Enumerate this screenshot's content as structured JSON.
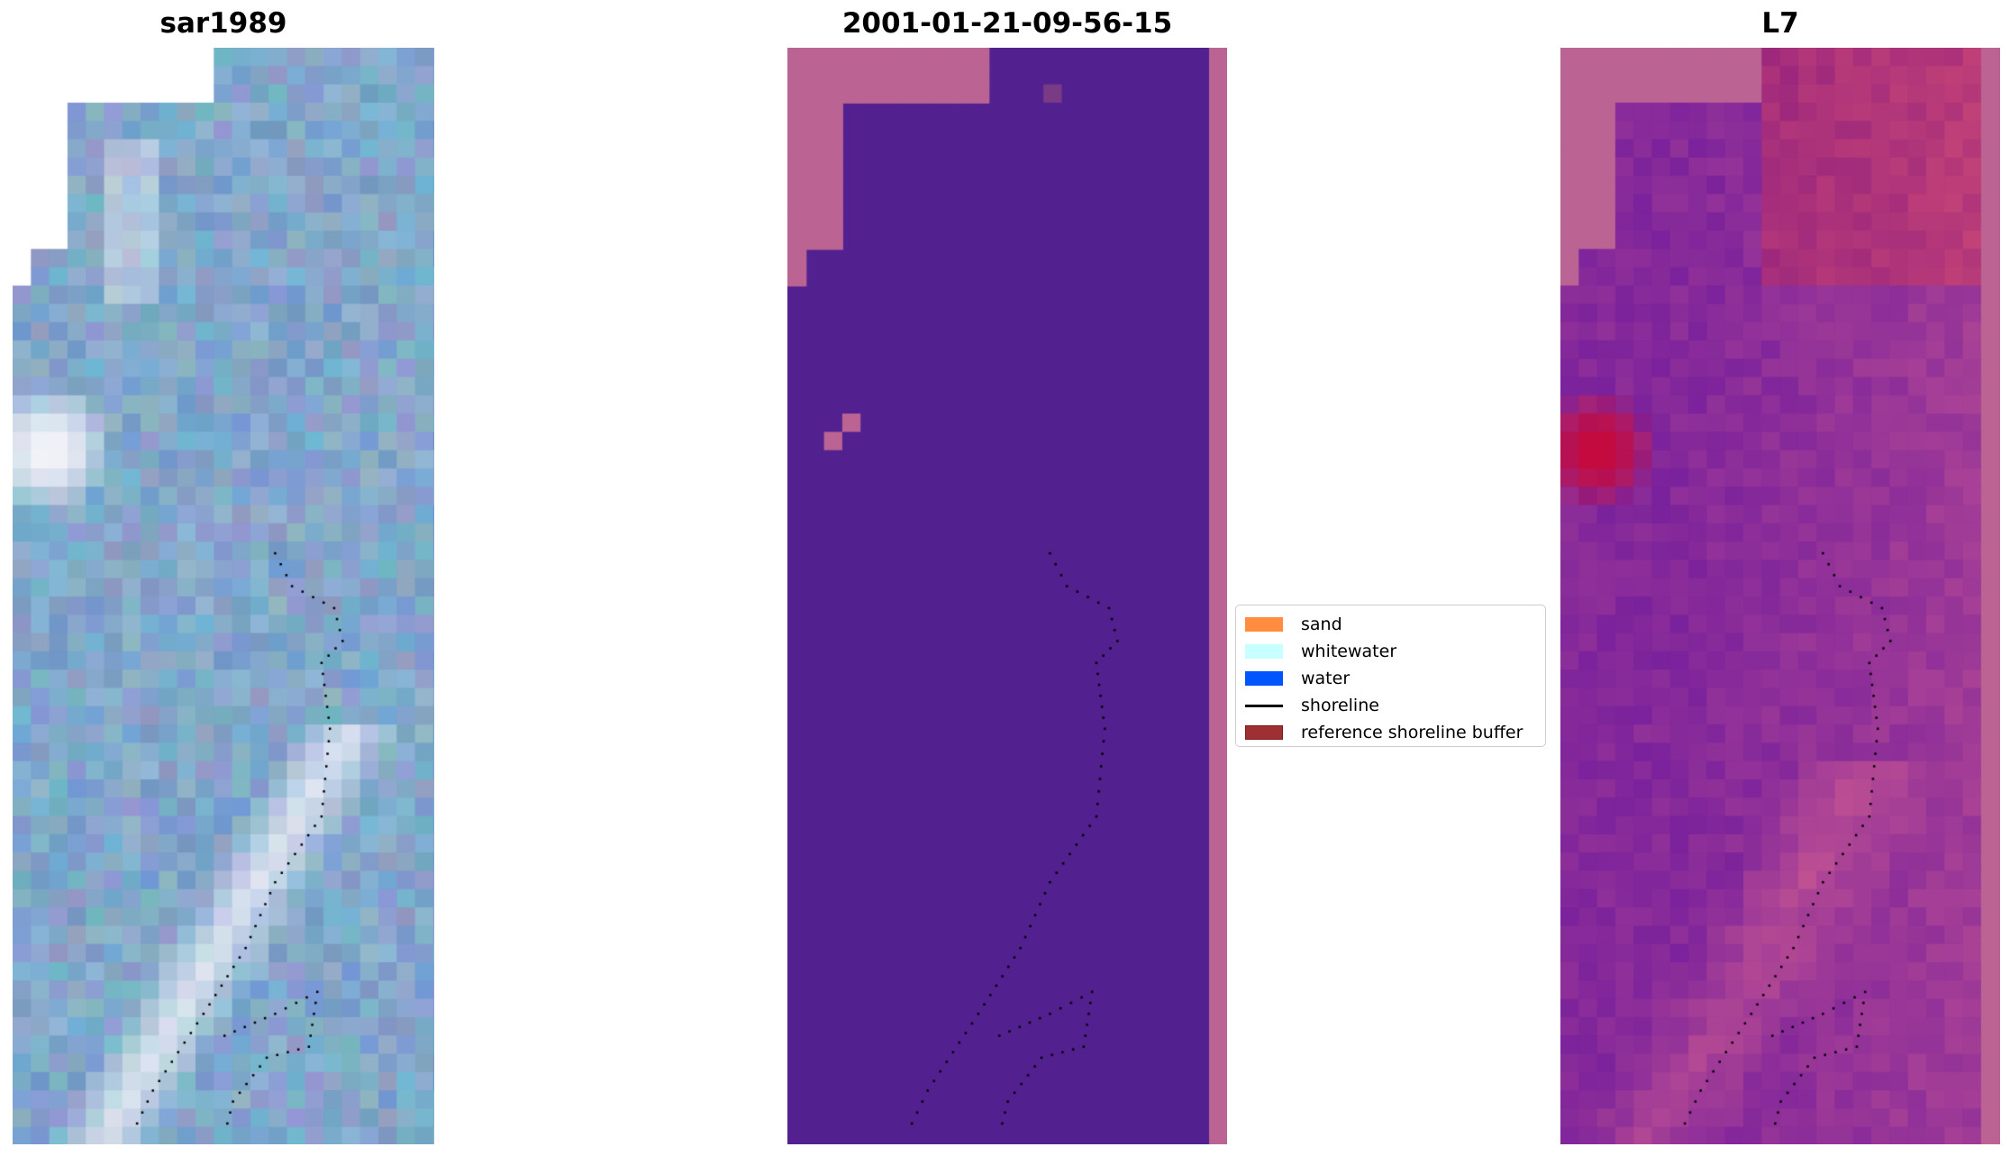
{
  "chart_data": {
    "type": "heatmap",
    "panels": [
      {
        "title": "sar1989",
        "kind": "rgb-image"
      },
      {
        "title": "2001-01-21-09-56-15",
        "kind": "classified-image"
      },
      {
        "title": "L7",
        "kind": "index-image"
      }
    ],
    "legend": {
      "placement": "center",
      "entries": [
        {
          "label": "sand",
          "color": "#FF8C3F",
          "type": "patch"
        },
        {
          "label": "whitewater",
          "color": "#C8FFFF",
          "type": "patch"
        },
        {
          "label": "water",
          "color": "#0055FF",
          "type": "patch"
        },
        {
          "label": "shoreline",
          "color": "#000000",
          "type": "line"
        },
        {
          "label": "reference shoreline buffer",
          "color": "#9E2F32",
          "type": "patch"
        }
      ]
    },
    "colors": {
      "class_bg": "#52218F",
      "class_nodata": "#BB6494"
    }
  }
}
